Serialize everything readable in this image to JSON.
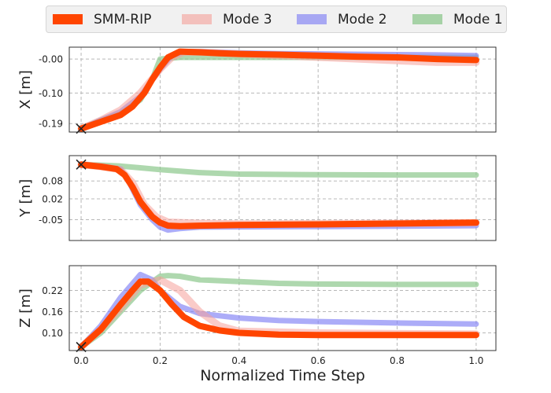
{
  "chart_data": {
    "type": "line",
    "xlabel": "Normalized Time Step",
    "x_ticks": [
      0.0,
      0.2,
      0.4,
      0.6,
      0.8,
      1.0
    ],
    "x_tick_labels": [
      "0.0",
      "0.2",
      "0.4",
      "0.6",
      "0.8",
      "1.0"
    ],
    "xlim": [
      -0.03,
      1.05
    ],
    "legend": {
      "placement": "top",
      "entries": [
        {
          "label": "SMM-RIP",
          "color": "#ff4500",
          "alpha": 1.0
        },
        {
          "label": "Mode 3",
          "color": "#f5a09a",
          "alpha": 0.55
        },
        {
          "label": "Mode 2",
          "color": "#7f7ff5",
          "alpha": 0.65
        },
        {
          "label": "Mode 1",
          "color": "#8cc78c",
          "alpha": 0.7
        }
      ]
    },
    "subplots": [
      {
        "ylabel": "X [m]",
        "ylim": [
          -0.215,
          0.035
        ],
        "y_ticks": [
          -0.19,
          -0.1,
          -0.0
        ],
        "y_tick_labels": [
          "-0.19",
          "-0.10",
          "-0.00"
        ],
        "grid": true,
        "start_marker": {
          "x": 0.0,
          "y": -0.205
        },
        "series": [
          {
            "name": "Mode 1",
            "x": [
              0,
              0.05,
              0.1,
              0.15,
              0.18,
              0.2,
              0.25,
              0.3,
              0.5,
              0.7,
              1.0
            ],
            "y": [
              -0.205,
              -0.18,
              -0.16,
              -0.12,
              -0.06,
              0.0,
              0.005,
              0.005,
              0.005,
              0.005,
              0.005
            ]
          },
          {
            "name": "Mode 2",
            "x": [
              0,
              0.05,
              0.1,
              0.15,
              0.2,
              0.23,
              0.26,
              0.3,
              0.4,
              0.5,
              0.6,
              0.7,
              0.8,
              0.9,
              1.0
            ],
            "y": [
              -0.205,
              -0.18,
              -0.155,
              -0.11,
              -0.03,
              0.01,
              0.022,
              0.022,
              0.018,
              0.016,
              0.015,
              0.014,
              0.013,
              0.012,
              0.01
            ]
          },
          {
            "name": "Mode 3",
            "x": [
              0,
              0.05,
              0.1,
              0.15,
              0.2,
              0.23,
              0.26,
              0.3,
              0.4,
              0.5,
              0.6,
              0.7,
              0.8,
              0.9,
              1.0
            ],
            "y": [
              -0.205,
              -0.18,
              -0.15,
              -0.1,
              -0.03,
              0.005,
              0.02,
              0.02,
              0.015,
              0.01,
              0.005,
              0.0,
              -0.005,
              -0.01,
              -0.01
            ]
          },
          {
            "name": "SMM-RIP",
            "x": [
              0,
              0.05,
              0.1,
              0.13,
              0.16,
              0.18,
              0.2,
              0.22,
              0.25,
              0.3,
              0.35,
              0.4,
              0.5,
              0.6,
              0.7,
              0.8,
              0.9,
              1.0
            ],
            "y": [
              -0.205,
              -0.185,
              -0.165,
              -0.14,
              -0.1,
              -0.06,
              -0.025,
              0.005,
              0.022,
              0.02,
              0.017,
              0.015,
              0.013,
              0.01,
              0.007,
              0.005,
              0.0,
              -0.003
            ]
          }
        ]
      },
      {
        "ylabel": "Y [m]",
        "ylim": [
          -0.12,
          0.165
        ],
        "y_ticks": [
          -0.05,
          0.02,
          0.08
        ],
        "y_tick_labels": [
          "-0.05",
          "0.02",
          "0.08"
        ],
        "grid": true,
        "start_marker": {
          "x": 0.0,
          "y": 0.135
        },
        "series": [
          {
            "name": "Mode 1",
            "x": [
              0,
              0.05,
              0.1,
              0.15,
              0.2,
              0.3,
              0.4,
              0.6,
              0.8,
              1.0
            ],
            "y": [
              0.135,
              0.133,
              0.13,
              0.124,
              0.118,
              0.108,
              0.103,
              0.101,
              0.1,
              0.1
            ]
          },
          {
            "name": "Mode 2",
            "x": [
              0,
              0.05,
              0.1,
              0.12,
              0.15,
              0.18,
              0.2,
              0.22,
              0.25,
              0.3,
              0.4,
              0.6,
              0.8,
              1.0
            ],
            "y": [
              0.135,
              0.13,
              0.12,
              0.08,
              0.0,
              -0.05,
              -0.075,
              -0.085,
              -0.08,
              -0.075,
              -0.074,
              -0.073,
              -0.072,
              -0.07
            ]
          },
          {
            "name": "Mode 3",
            "x": [
              0,
              0.05,
              0.1,
              0.13,
              0.16,
              0.19,
              0.22,
              0.26,
              0.3,
              0.4,
              0.6,
              0.8,
              1.0
            ],
            "y": [
              0.135,
              0.128,
              0.118,
              0.075,
              0.0,
              -0.04,
              -0.058,
              -0.06,
              -0.062,
              -0.064,
              -0.063,
              -0.062,
              -0.06
            ]
          },
          {
            "name": "SMM-RIP",
            "x": [
              0,
              0.05,
              0.09,
              0.11,
              0.13,
              0.15,
              0.18,
              0.2,
              0.22,
              0.25,
              0.3,
              0.4,
              0.6,
              0.8,
              1.0
            ],
            "y": [
              0.135,
              0.128,
              0.12,
              0.1,
              0.06,
              0.01,
              -0.04,
              -0.06,
              -0.07,
              -0.072,
              -0.07,
              -0.068,
              -0.066,
              -0.063,
              -0.06
            ]
          }
        ]
      },
      {
        "ylabel": "Z [m]",
        "ylim": [
          0.05,
          0.29
        ],
        "y_ticks": [
          0.1,
          0.16,
          0.22
        ],
        "y_tick_labels": [
          "0.10",
          "0.16",
          "0.22"
        ],
        "grid": true,
        "start_marker": {
          "x": 0.0,
          "y": 0.06
        },
        "series": [
          {
            "name": "Mode 1",
            "x": [
              0,
              0.05,
              0.1,
              0.15,
              0.2,
              0.22,
              0.25,
              0.3,
              0.4,
              0.5,
              0.6,
              0.8,
              1.0
            ],
            "y": [
              0.06,
              0.1,
              0.16,
              0.22,
              0.26,
              0.262,
              0.26,
              0.25,
              0.245,
              0.24,
              0.238,
              0.237,
              0.237
            ]
          },
          {
            "name": "Mode 2",
            "x": [
              0,
              0.05,
              0.1,
              0.15,
              0.18,
              0.2,
              0.25,
              0.3,
              0.4,
              0.5,
              0.6,
              0.8,
              1.0
            ],
            "y": [
              0.06,
              0.12,
              0.2,
              0.265,
              0.25,
              0.22,
              0.175,
              0.155,
              0.142,
              0.135,
              0.132,
              0.128,
              0.125
            ]
          },
          {
            "name": "Mode 3",
            "x": [
              0,
              0.05,
              0.1,
              0.15,
              0.2,
              0.25,
              0.3,
              0.35,
              0.4,
              0.6,
              0.8,
              1.0
            ],
            "y": [
              0.06,
              0.11,
              0.17,
              0.235,
              0.25,
              0.22,
              0.16,
              0.12,
              0.105,
              0.1,
              0.098,
              0.097
            ]
          },
          {
            "name": "SMM-RIP",
            "x": [
              0,
              0.05,
              0.1,
              0.13,
              0.15,
              0.17,
              0.2,
              0.23,
              0.26,
              0.3,
              0.35,
              0.4,
              0.5,
              0.6,
              0.8,
              1.0
            ],
            "y": [
              0.06,
              0.11,
              0.18,
              0.22,
              0.245,
              0.245,
              0.22,
              0.18,
              0.145,
              0.12,
              0.107,
              0.1,
              0.095,
              0.094,
              0.094,
              0.094
            ]
          }
        ]
      }
    ]
  }
}
